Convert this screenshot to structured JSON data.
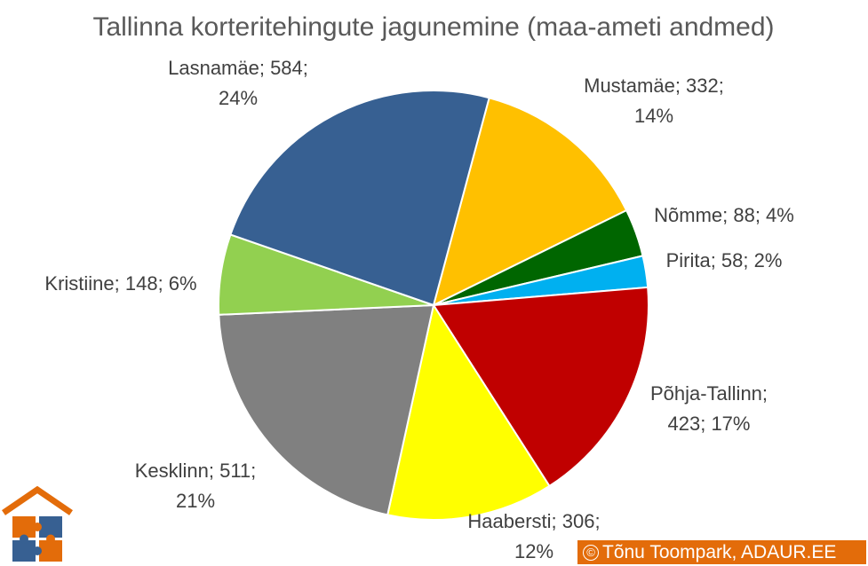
{
  "chart_data": {
    "type": "pie",
    "title": "Tallinna korteritehingute jagunemine (maa-ameti andmed)",
    "slices": [
      {
        "name": "Mustamäe",
        "value": 332,
        "percent": "14%",
        "color": "#ffc000",
        "label_lines": [
          "Mustamäe; 332;",
          "14%"
        ]
      },
      {
        "name": "Nõmme",
        "value": 88,
        "percent": "4%",
        "color": "#006600",
        "label_lines": [
          "Nõmme; 88; 4%"
        ]
      },
      {
        "name": "Pirita",
        "value": 58,
        "percent": "2%",
        "color": "#00b0f0",
        "label_lines": [
          "Pirita; 58; 2%"
        ]
      },
      {
        "name": "Põhja-Tallinn",
        "value": 423,
        "percent": "17%",
        "color": "#c00000",
        "label_lines": [
          "Põhja-Tallinn;",
          "423; 17%"
        ]
      },
      {
        "name": "Haabersti",
        "value": 306,
        "percent": "12%",
        "color": "#ffff00",
        "label_lines": [
          "Haabersti; 306;",
          "12%"
        ]
      },
      {
        "name": "Kesklinn",
        "value": 511,
        "percent": "21%",
        "color": "#808080",
        "label_lines": [
          "Kesklinn; 511;",
          "21%"
        ]
      },
      {
        "name": "Kristiine",
        "value": 148,
        "percent": "6%",
        "color": "#92d050",
        "label_lines": [
          "Kristiine; 148; 6%"
        ]
      },
      {
        "name": "Lasnamäe",
        "value": 584,
        "percent": "24%",
        "color": "#376092",
        "label_lines": [
          "Lasnamäe; 584;",
          "24%"
        ]
      }
    ]
  },
  "credit": {
    "symbol": "©",
    "text": "Tõnu Toompark, ADAUR.EE",
    "color": "#e36c0a"
  },
  "logo": {
    "icon": "house-puzzle-icon",
    "colors": [
      "#e36c0a",
      "#376092"
    ]
  }
}
